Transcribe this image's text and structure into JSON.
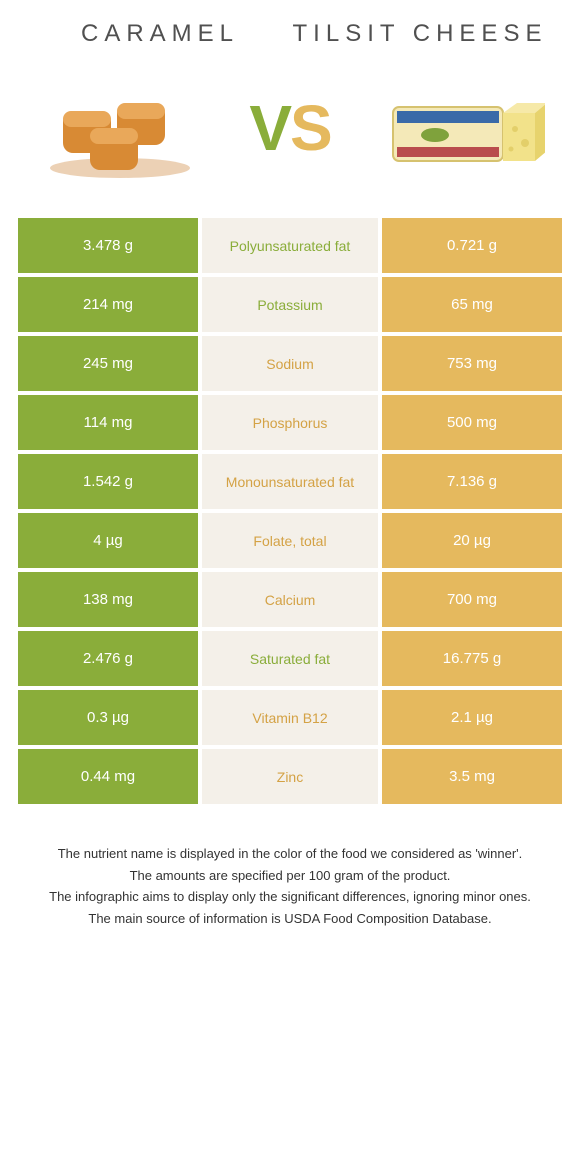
{
  "header": {
    "left_title": "Caramel",
    "right_title": "Tilsit cheese"
  },
  "colors": {
    "left": "#8aad3a",
    "right": "#e5b95e",
    "mid_bg": "#f4f0e9",
    "text": "#505050"
  },
  "vs": {
    "v": "V",
    "s": "S"
  },
  "rows": [
    {
      "left": "3.478 g",
      "label": "Polyunsaturated fat",
      "right": "0.721 g",
      "winner": "left"
    },
    {
      "left": "214 mg",
      "label": "Potassium",
      "right": "65 mg",
      "winner": "left"
    },
    {
      "left": "245 mg",
      "label": "Sodium",
      "right": "753 mg",
      "winner": "right"
    },
    {
      "left": "114 mg",
      "label": "Phosphorus",
      "right": "500 mg",
      "winner": "right"
    },
    {
      "left": "1.542 g",
      "label": "Monounsaturated fat",
      "right": "7.136 g",
      "winner": "right"
    },
    {
      "left": "4 µg",
      "label": "Folate, total",
      "right": "20 µg",
      "winner": "right"
    },
    {
      "left": "138 mg",
      "label": "Calcium",
      "right": "700 mg",
      "winner": "right"
    },
    {
      "left": "2.476 g",
      "label": "Saturated fat",
      "right": "16.775 g",
      "winner": "left"
    },
    {
      "left": "0.3 µg",
      "label": "Vitamin B12",
      "right": "2.1 µg",
      "winner": "right"
    },
    {
      "left": "0.44 mg",
      "label": "Zinc",
      "right": "3.5 mg",
      "winner": "right"
    }
  ],
  "footnotes": [
    "The nutrient name is displayed in the color of the food we considered as 'winner'.",
    "The amounts are specified per 100 gram of the product.",
    "The infographic aims to display only the significant differences, ignoring minor ones.",
    "The main source of information is USDA Food Composition Database."
  ]
}
